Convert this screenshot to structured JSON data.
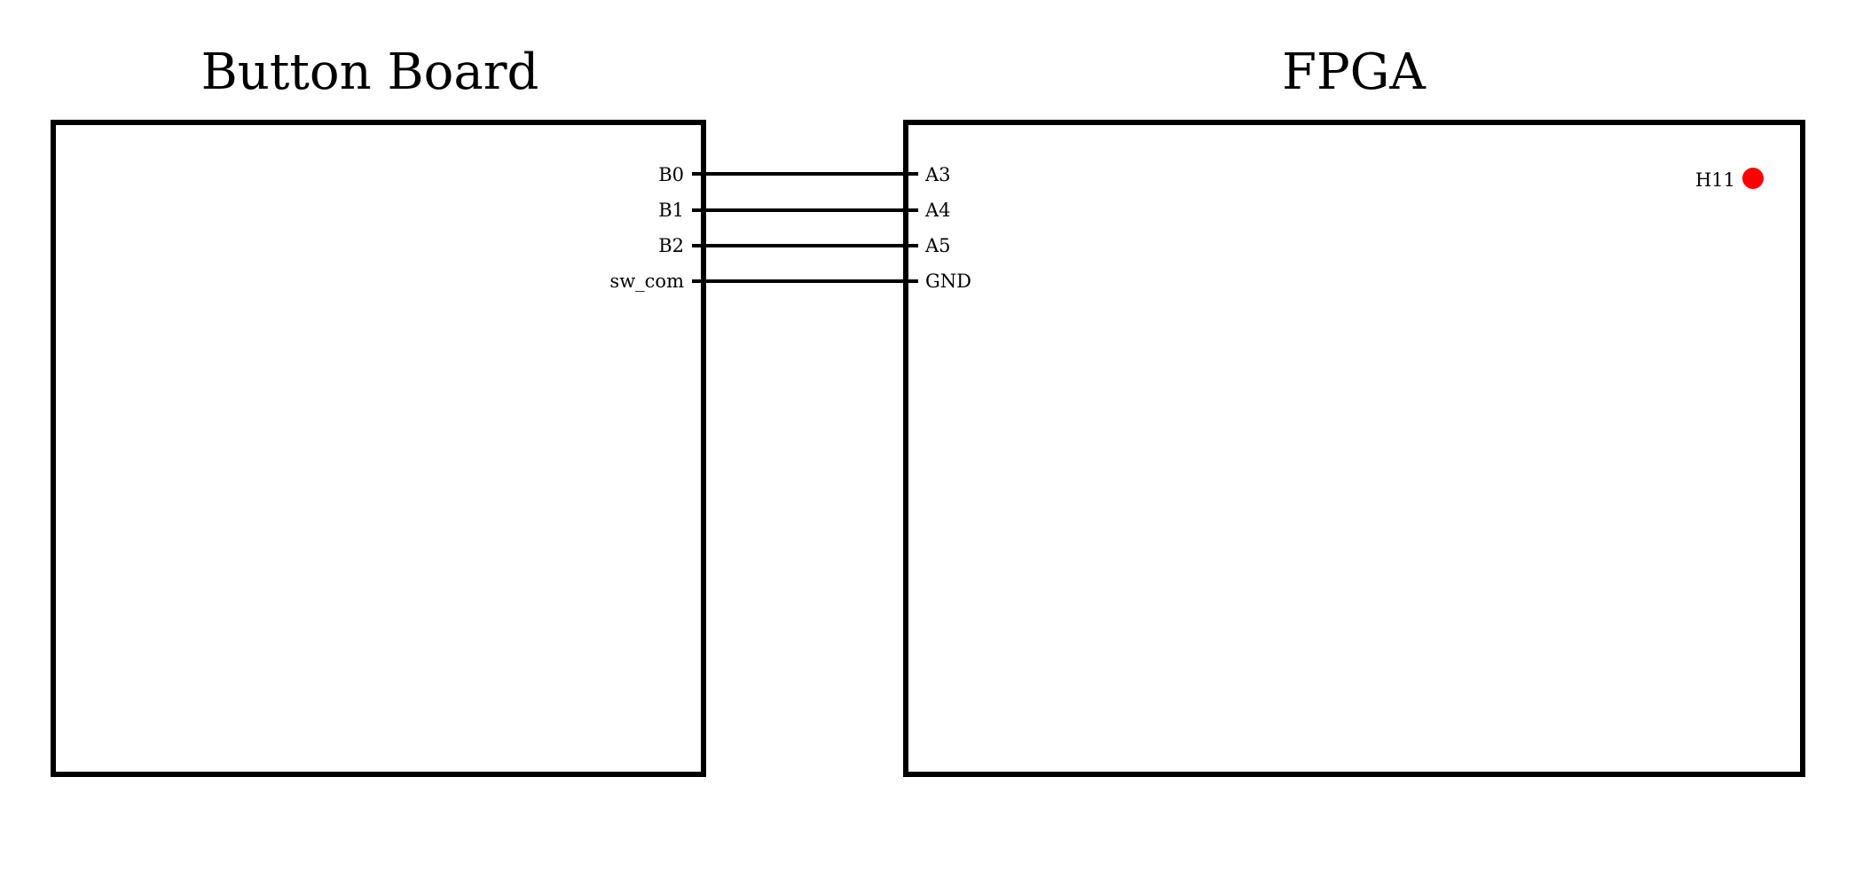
{
  "colors": {
    "line": "#000000",
    "background": "#ffffff",
    "indicator": "#ff0000"
  },
  "diagram": {
    "left_block": {
      "title": "Button Board",
      "pins": [
        "B0",
        "B1",
        "B2",
        "sw_com"
      ]
    },
    "right_block": {
      "title": "FPGA",
      "pins": [
        "A3",
        "A4",
        "A5",
        "GND"
      ],
      "indicator_label": "H11"
    },
    "connections": [
      {
        "from": "B0",
        "to": "A3"
      },
      {
        "from": "B1",
        "to": "A4"
      },
      {
        "from": "B2",
        "to": "A5"
      },
      {
        "from": "sw_com",
        "to": "GND"
      }
    ]
  }
}
